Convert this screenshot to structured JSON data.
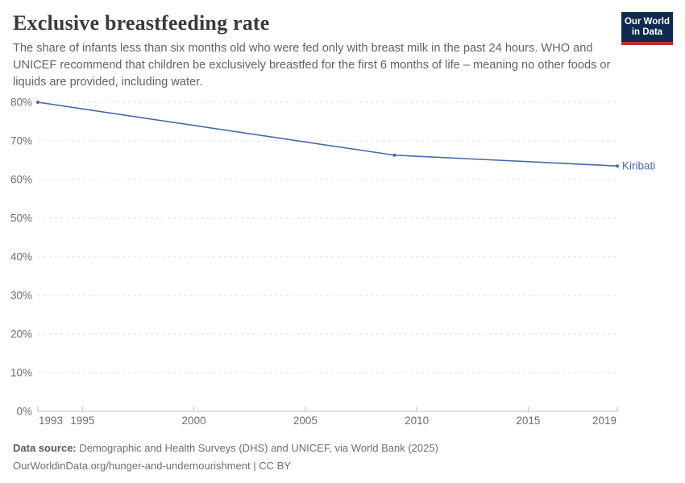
{
  "header": {
    "title": "Exclusive breastfeeding rate",
    "subtitle": "The share of infants less than six months old who were fed only with breast milk in the past 24 hours. WHO and UNICEF recommend that children be exclusively breastfed for the first 6 months of life – meaning no other foods or liquids are provided, including water.",
    "logo": {
      "line1": "Our World",
      "line2": "in Data"
    }
  },
  "chart_data": {
    "type": "line",
    "title": "Exclusive breastfeeding rate",
    "xlabel": "",
    "ylabel": "",
    "xlim": [
      1993,
      2019
    ],
    "ylim": [
      0,
      80
    ],
    "x_ticks": [
      1993,
      1995,
      2000,
      2005,
      2010,
      2015,
      2019
    ],
    "y_ticks": [
      0,
      10,
      20,
      30,
      40,
      50,
      60,
      70,
      80
    ],
    "y_tick_suffix": "%",
    "grid": "horizontal-dashed",
    "legend_position": "end-of-line-label",
    "series": [
      {
        "name": "Kiribati",
        "color": "#4a68a8",
        "x": [
          1993,
          2009,
          2019
        ],
        "values": [
          80,
          66.3,
          63.5
        ]
      }
    ]
  },
  "footer": {
    "datasource_label": "Data source:",
    "datasource_text": " Demographic and Health Surveys (DHS) and UNICEF, via World Bank (2025)",
    "link_text": "OurWorldinData.org/hunger-and-undernourishment",
    "license_suffix": " | CC BY"
  },
  "colors": {
    "line": "#4a68a8",
    "logo_navy": "#0e2a4f",
    "logo_red": "#c52a33",
    "gridline": "#dcdcdc",
    "axis": "#bfbfbf"
  }
}
